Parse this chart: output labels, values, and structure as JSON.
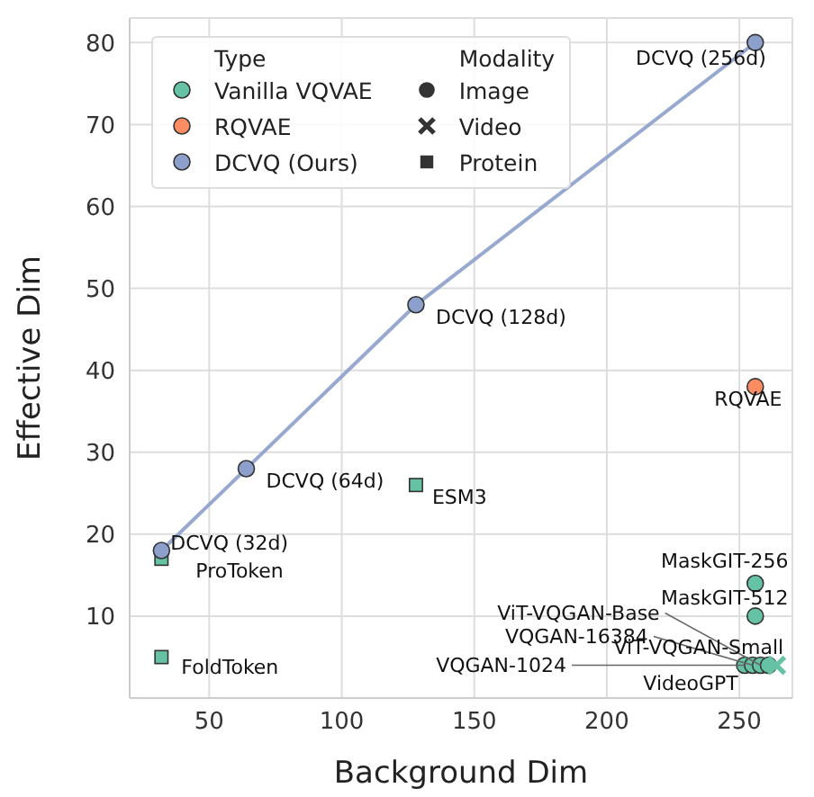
{
  "chart_data": {
    "type": "scatter",
    "xlabel": "Background Dim",
    "ylabel": "Effective Dim",
    "legend_title": "Type",
    "legend": "top left",
    "grid": true,
    "xlim": [
      20,
      270
    ],
    "xticks": [
      50,
      100,
      150,
      200,
      250
    ],
    "ylim": [
      0,
      83
    ],
    "yticks": [
      10,
      20,
      30,
      40,
      50,
      60,
      70,
      80
    ],
    "annotations": [
      "Modality",
      {
        "text": "DCVQ (32d)",
        "x": 32,
        "y": 18
      },
      {
        "text": "DCVQ (64d)",
        "x": 64,
        "y": 28
      },
      {
        "text": "DCVQ (128d)",
        "x": 128,
        "y": 48
      },
      {
        "text": "DCVQ (256d)",
        "x": 256,
        "y": 80
      },
      {
        "text": "RQVAE",
        "x": 256,
        "y": 38
      },
      {
        "text": "MaskGIT-256",
        "x": 256,
        "y": 14
      },
      {
        "text": "MaskGIT-512",
        "x": 256,
        "y": 10
      },
      {
        "text": "VQGAN-1024",
        "x": 252,
        "y": 4
      },
      {
        "text": "VQGAN-16384",
        "x": 255,
        "y": 4
      },
      {
        "text": "ViT-VQGAN-Base",
        "x": 258,
        "y": 4
      },
      {
        "text": "ViT-VQGAN-Small",
        "x": 261,
        "y": 4
      },
      {
        "text": "VideoGPT",
        "x": 264,
        "y": 4
      },
      {
        "text": "ESM3",
        "x": 128,
        "y": 26
      },
      {
        "text": "ProToken",
        "x": 32,
        "y": 17
      },
      {
        "text": "FoldToken",
        "x": 32,
        "y": 5
      }
    ],
    "series": [
      {
        "name": "Vanilla VQVAE",
        "color": "#66c2a5",
        "marker": "circle",
        "x": [
          256,
          256,
          252,
          255,
          258,
          261
        ],
        "values": [
          14,
          10,
          4,
          4,
          4,
          4
        ]
      },
      {
        "color": "#66c2a5",
        "marker": "cross",
        "x": [
          264
        ],
        "values": [
          4
        ]
      },
      {
        "color": "#66c2a5",
        "marker": "square",
        "x": [
          128,
          32,
          32
        ],
        "values": [
          26,
          17,
          5
        ]
      },
      {
        "name": "RQVAE",
        "color": "#fc8d62",
        "marker": "circle",
        "x": [
          256
        ],
        "values": [
          38
        ]
      },
      {
        "name": "DCVQ (Ours)",
        "color": "#8da0cb",
        "type": "line",
        "marker": "circle",
        "line_style": "solid",
        "x": [
          32,
          64,
          128,
          256
        ],
        "values": [
          18,
          28,
          48,
          80
        ]
      },
      {
        "name": "Image",
        "color": "#333333",
        "marker": "circle"
      },
      {
        "name": "Video",
        "color": "#333333",
        "marker": "cross"
      },
      {
        "name": "Protein",
        "color": "#333333",
        "marker": "square"
      }
    ]
  }
}
